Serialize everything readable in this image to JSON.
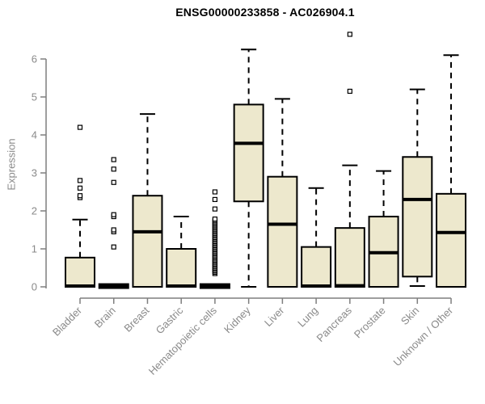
{
  "chart_data": {
    "type": "boxplot",
    "title": "ENSG00000233858 - AC026904.1",
    "ylabel": "Expression",
    "xlabel": "",
    "ylim": [
      0,
      6.7
    ],
    "yticks": [
      0,
      1,
      2,
      3,
      4,
      5,
      6
    ],
    "grid": "off",
    "legend": "none",
    "categories": [
      "Bladder",
      "Brain",
      "Breast",
      "Gastric",
      "Hematopoietic cells",
      "Kidney",
      "Liver",
      "Lung",
      "Pancreas",
      "Prostate",
      "Skin",
      "Unknown / Other"
    ],
    "series": [
      {
        "name": "Bladder",
        "min": 0,
        "q1": 0,
        "median": 0.02,
        "q3": 0.77,
        "max": 1.77,
        "outliers": [
          2.35,
          2.4,
          2.6,
          2.8,
          4.2
        ]
      },
      {
        "name": "Brain",
        "min": 0,
        "q1": 0,
        "median": 0.02,
        "q3": 0.04,
        "max": 0.04,
        "outliers": [
          1.05,
          1.45,
          1.5,
          1.85,
          1.9,
          2.75,
          3.1,
          3.35
        ]
      },
      {
        "name": "Breast",
        "min": 0,
        "q1": 0,
        "median": 1.45,
        "q3": 2.4,
        "max": 4.55,
        "outliers": []
      },
      {
        "name": "Gastric",
        "min": 0,
        "q1": 0,
        "median": 0.02,
        "q3": 1.0,
        "max": 1.85,
        "outliers": []
      },
      {
        "name": "Hematopoietic cells",
        "min": 0,
        "q1": 0,
        "median": 0.02,
        "q3": 0.04,
        "max": 0.04,
        "outliers": [
          2.05,
          2.3,
          2.5
        ],
        "dense_outlier_range": [
          0.35,
          1.8
        ]
      },
      {
        "name": "Kidney",
        "min": 0,
        "q1": 2.25,
        "median": 3.78,
        "q3": 4.8,
        "max": 6.25,
        "outliers": []
      },
      {
        "name": "Liver",
        "min": 0,
        "q1": 0,
        "median": 1.65,
        "q3": 2.9,
        "max": 4.95,
        "outliers": []
      },
      {
        "name": "Lung",
        "min": 0,
        "q1": 0,
        "median": 0.02,
        "q3": 1.05,
        "max": 2.6,
        "outliers": []
      },
      {
        "name": "Pancreas",
        "min": 0,
        "q1": 0,
        "median": 0.03,
        "q3": 1.55,
        "max": 3.2,
        "outliers": [
          5.15,
          6.65
        ]
      },
      {
        "name": "Prostate",
        "min": 0,
        "q1": 0,
        "median": 0.9,
        "q3": 1.85,
        "max": 3.05,
        "outliers": []
      },
      {
        "name": "Skin",
        "min": 0.02,
        "q1": 0.27,
        "median": 2.3,
        "q3": 3.42,
        "max": 5.2,
        "outliers": []
      },
      {
        "name": "Unknown / Other",
        "min": 0,
        "q1": 0,
        "median": 1.43,
        "q3": 2.45,
        "max": 6.1,
        "outliers": []
      }
    ],
    "colors": {
      "box_fill": "#EDE8CD",
      "box_stroke": "#000000",
      "median": "#000000",
      "whisker": "#000000",
      "outlier_stroke": "#000000",
      "outlier_fill": "#ffffff",
      "axis": "#7f7f7f",
      "tick_label": "#8a8a8a",
      "title": "#000000",
      "background": "#ffffff"
    }
  }
}
